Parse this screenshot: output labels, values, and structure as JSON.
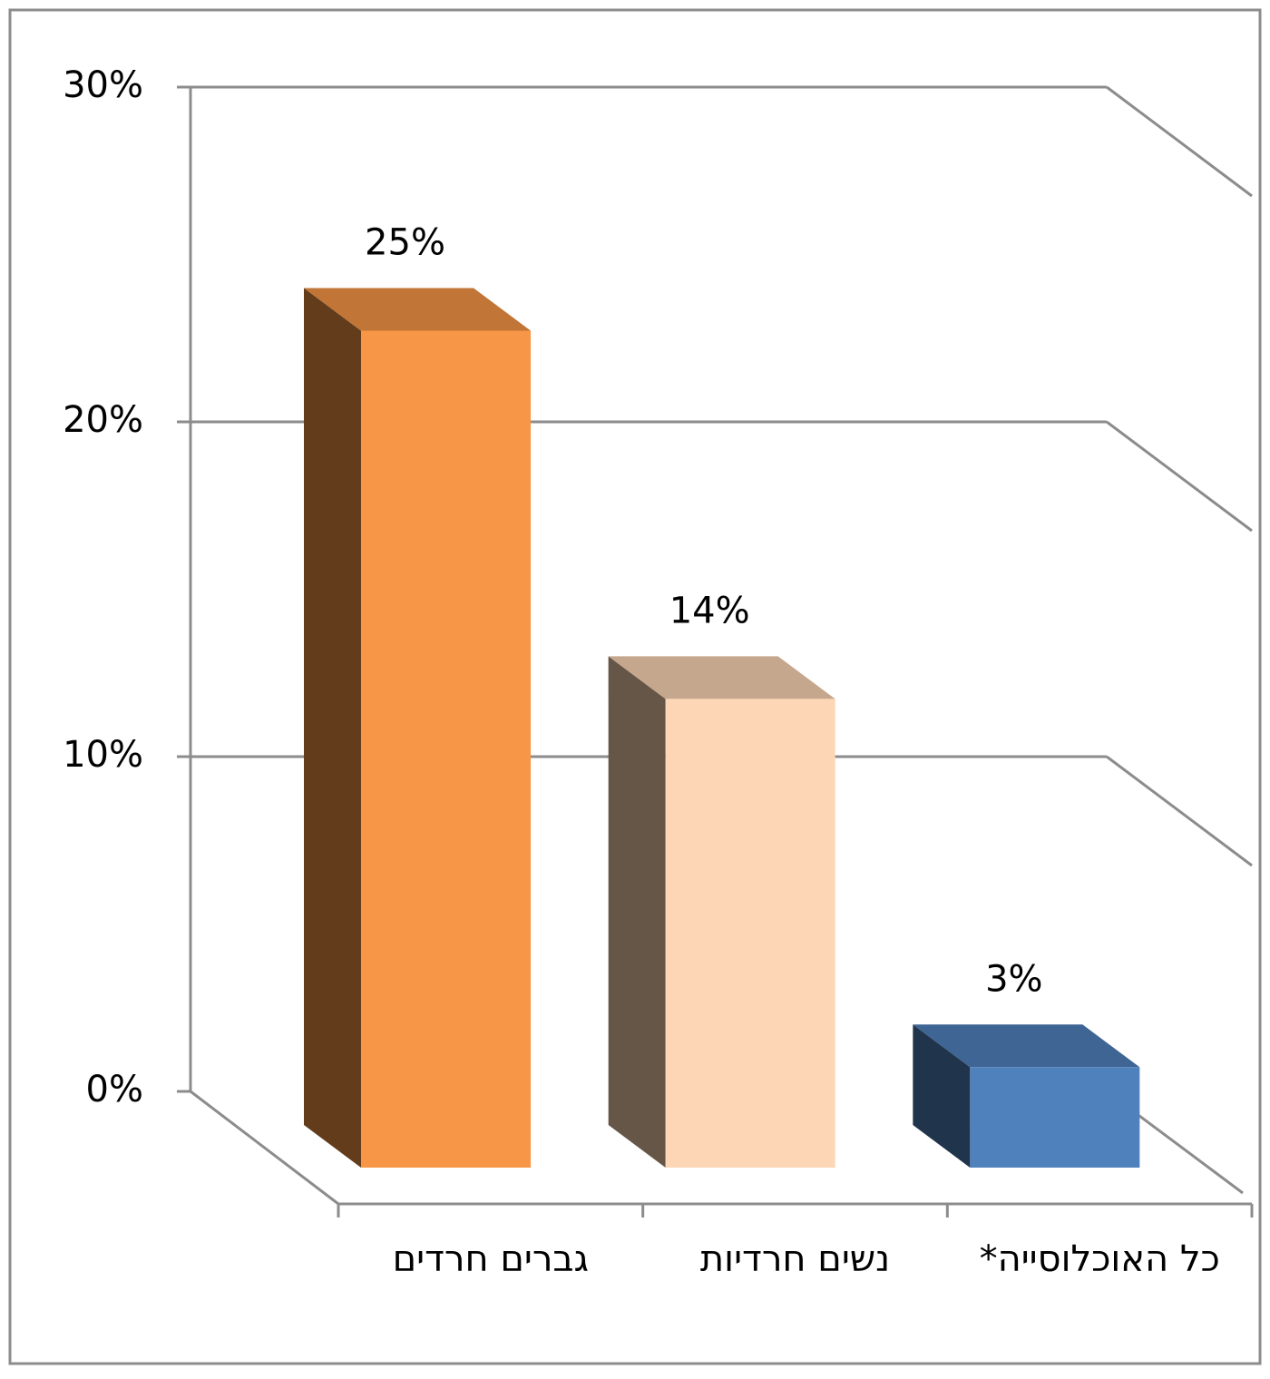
{
  "chart_data": {
    "type": "bar3d",
    "categories": [
      "גברים חרדים",
      "נשים חרדיות",
      "כל האוכלוסייה*"
    ],
    "values": [
      25,
      14,
      3
    ],
    "value_labels": [
      "25%",
      "14%",
      "3%"
    ],
    "colors": [
      "#F79646",
      "#FDD6B5",
      "#4F81BD"
    ],
    "ylim": [
      0,
      30
    ],
    "yticks": [
      {
        "value": 0,
        "label": "0%"
      },
      {
        "value": 10,
        "label": "10%"
      },
      {
        "value": 20,
        "label": "20%"
      },
      {
        "value": 30,
        "label": "30%"
      }
    ],
    "grid": true
  }
}
